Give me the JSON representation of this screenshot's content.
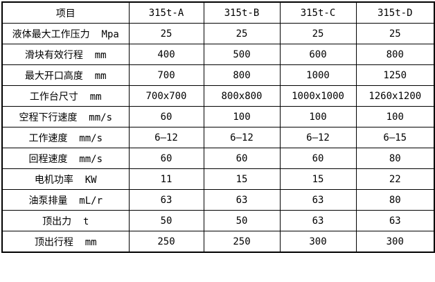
{
  "colors": {
    "border": "#000000",
    "background": "#ffffff",
    "text": "#000000"
  },
  "table": {
    "header": [
      "项目",
      "315t-A",
      "315t-B",
      "315t-C",
      "315t-D"
    ],
    "rows": [
      {
        "label": "液体最大工作压力  Mpa",
        "values": [
          "25",
          "25",
          "25",
          "25"
        ]
      },
      {
        "label": "滑块有效行程  mm",
        "values": [
          "400",
          "500",
          "600",
          "800"
        ]
      },
      {
        "label": "最大开口高度  mm",
        "values": [
          "700",
          "800",
          "1000",
          "1250"
        ]
      },
      {
        "label": "工作台尺寸  mm",
        "values": [
          "700x700",
          "800x800",
          "1000x1000",
          "1260x1200"
        ]
      },
      {
        "label": "空程下行速度  mm/s",
        "values": [
          "60",
          "100",
          "100",
          "100"
        ]
      },
      {
        "label": "工作速度  mm/s",
        "values": [
          "6—12",
          "6—12",
          "6—12",
          "6—15"
        ]
      },
      {
        "label": "回程速度  mm/s",
        "values": [
          "60",
          "60",
          "60",
          "80"
        ]
      },
      {
        "label": "电机功率  KW",
        "values": [
          "11",
          "15",
          "15",
          "22"
        ]
      },
      {
        "label": "油泵排量  mL/r",
        "values": [
          "63",
          "63",
          "63",
          "80"
        ]
      },
      {
        "label": "顶出力  t",
        "values": [
          "50",
          "50",
          "63",
          "63"
        ]
      },
      {
        "label": "顶出行程  mm",
        "values": [
          "250",
          "250",
          "300",
          "300"
        ]
      }
    ]
  }
}
